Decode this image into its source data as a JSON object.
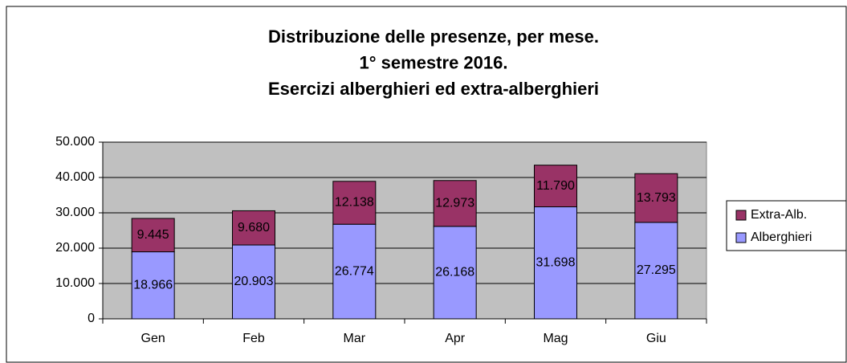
{
  "chart_data": {
    "type": "stacked_bar",
    "title_lines": [
      "Distribuzione delle presenze, per mese.",
      "1° semestre 2016.",
      "Esercizi alberghieri ed extra-alberghieri"
    ],
    "categories": [
      "Gen",
      "Feb",
      "Mar",
      "Apr",
      "Mag",
      "Giu"
    ],
    "series": [
      {
        "name": "Alberghieri",
        "color": "#9999ff",
        "values": [
          18966,
          20903,
          26774,
          26168,
          31698,
          27295
        ],
        "value_labels": [
          "18.966",
          "20.903",
          "26.774",
          "26.168",
          "31.698",
          "27.295"
        ]
      },
      {
        "name": "Extra-Alb.",
        "color": "#993366",
        "values": [
          9445,
          9680,
          12138,
          12973,
          11790,
          13793
        ],
        "value_labels": [
          "9.445",
          "9.680",
          "12.138",
          "12.973",
          "11.790",
          "13.793"
        ]
      }
    ],
    "ylim": [
      0,
      50000
    ],
    "yticks": [
      0,
      {
        "value": 10000,
        "label": "10.000"
      },
      {
        "value": 20000,
        "label": "20.000"
      },
      {
        "value": 30000,
        "label": "30.000"
      },
      {
        "value": 40000,
        "label": "40.000"
      },
      {
        "value": 50000,
        "label": "50.000"
      }
    ],
    "grid": true,
    "legend": "right"
  }
}
